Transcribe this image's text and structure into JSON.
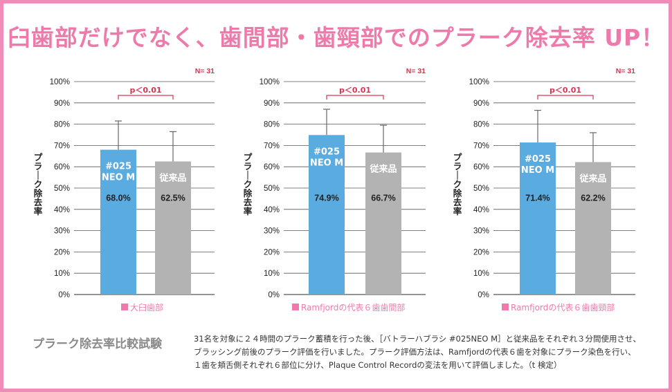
{
  "headline": "臼歯部だけでなく、歯間部・歯頸部でのプラーク除去率 UP！",
  "colors": {
    "accent": "#ee7aab",
    "neo": "#5aabdf",
    "conventional": "#b3b3b3",
    "sig": "#d9344f",
    "frame": "#ef8cb8"
  },
  "chart_data": [
    {
      "type": "bar",
      "n_label": "N= 31",
      "sig_label": "p＜0.01",
      "ylabel": "プラーク除去率",
      "yticks": [
        "0%",
        "10%",
        "20%",
        "30%",
        "40%",
        "50%",
        "60%",
        "70%",
        "80%",
        "90%",
        "100%"
      ],
      "ylim": [
        0,
        100
      ],
      "grid": true,
      "legend": "大臼歯部",
      "series": [
        {
          "label_lines": [
            "#025",
            "NEO M"
          ],
          "value": 68.0,
          "value_label": "68.0%",
          "error_top": 81.5
        },
        {
          "label_lines": [
            "従来品"
          ],
          "value": 62.5,
          "value_label": "62.5%",
          "error_top": 76.5
        }
      ]
    },
    {
      "type": "bar",
      "n_label": "N= 31",
      "sig_label": "p＜0.01",
      "ylabel": "プラーク除去率",
      "yticks": [
        "0%",
        "10%",
        "20%",
        "30%",
        "40%",
        "50%",
        "60%",
        "70%",
        "80%",
        "90%",
        "100%"
      ],
      "ylim": [
        0,
        100
      ],
      "grid": true,
      "legend": "Ramfjordの代表６歯歯間部",
      "series": [
        {
          "label_lines": [
            "#025",
            "NEO M"
          ],
          "value": 74.9,
          "value_label": "74.9%",
          "error_top": 87.0
        },
        {
          "label_lines": [
            "従来品"
          ],
          "value": 66.7,
          "value_label": "66.7%",
          "error_top": 79.5
        }
      ]
    },
    {
      "type": "bar",
      "n_label": "N= 31",
      "sig_label": "p＜0.01",
      "ylabel": "プラーク除去率",
      "yticks": [
        "0%",
        "10%",
        "20%",
        "30%",
        "40%",
        "50%",
        "60%",
        "70%",
        "80%",
        "90%",
        "100%"
      ],
      "ylim": [
        0,
        100
      ],
      "grid": true,
      "legend": "Ramfjordの代表６歯歯頸部",
      "series": [
        {
          "label_lines": [
            "#025",
            "NEO M"
          ],
          "value": 71.4,
          "value_label": "71.4%",
          "error_top": 86.5
        },
        {
          "label_lines": [
            "従来品"
          ],
          "value": 62.2,
          "value_label": "62.2%",
          "error_top": 76.0
        }
      ]
    }
  ],
  "footer": {
    "title": "プラーク除去率比較試験",
    "lines": [
      "31名を対象に２４時間のプラーク蓄積を行った後、［バトラーハブラシ #025NEO M］と従来品をそれぞれ３分間使用させ、",
      "ブラッシング前後のプラーク評価を行いました。プラーク評価方法は、Ramfjordの代表６歯を対象にプラーク染色を行い、",
      "１歯を頬舌側それぞれ６部位に分け、Plaque Control Recordの変法を用いて評価しました。（t 検定）"
    ]
  }
}
